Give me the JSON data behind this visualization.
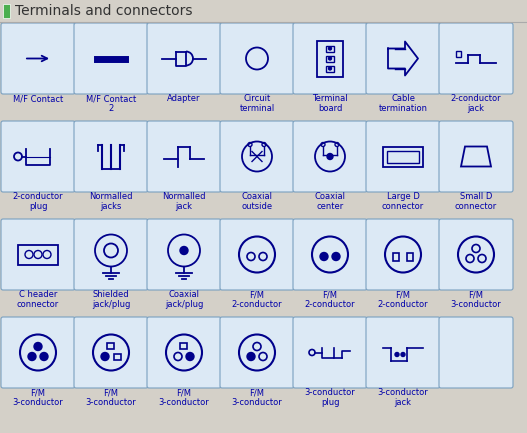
{
  "title": "Terminals and connectors",
  "title_color": "#333333",
  "bg_color": "#d4d0c8",
  "cell_bg": "#dce9f5",
  "cell_border": "#7aa0c0",
  "symbol_color": "#00008b",
  "text_color": "#0000aa",
  "title_bar_color": "#4caf50",
  "cols": 7,
  "rows": 4,
  "labels": [
    [
      "M/F Contact",
      "M/F Contact\n2",
      "Adapter",
      "Circuit\nterminal",
      "Terminal\nboard",
      "Cable\ntermination",
      "2-conductor\njack"
    ],
    [
      "2-conductor\nplug",
      "Normalled\njacks",
      "Normalled\njack",
      "Coaxial\noutside",
      "Coaxial\ncenter",
      "Large D\nconnector",
      "Small D\nconnector"
    ],
    [
      "C header\nconnector",
      "Shielded\njack/plug",
      "Coaxial\njack/plug",
      "F/M\n2-conductor",
      "F/M\n2-conductor",
      "F/M\n2-conductor",
      "F/M\n3-conductor"
    ],
    [
      "F/M\n3-conductor",
      "F/M\n3-conductor",
      "F/M\n3-conductor",
      "F/M\n3-conductor",
      "3-conductor\nplug",
      "3-conductor\njack",
      ""
    ]
  ]
}
